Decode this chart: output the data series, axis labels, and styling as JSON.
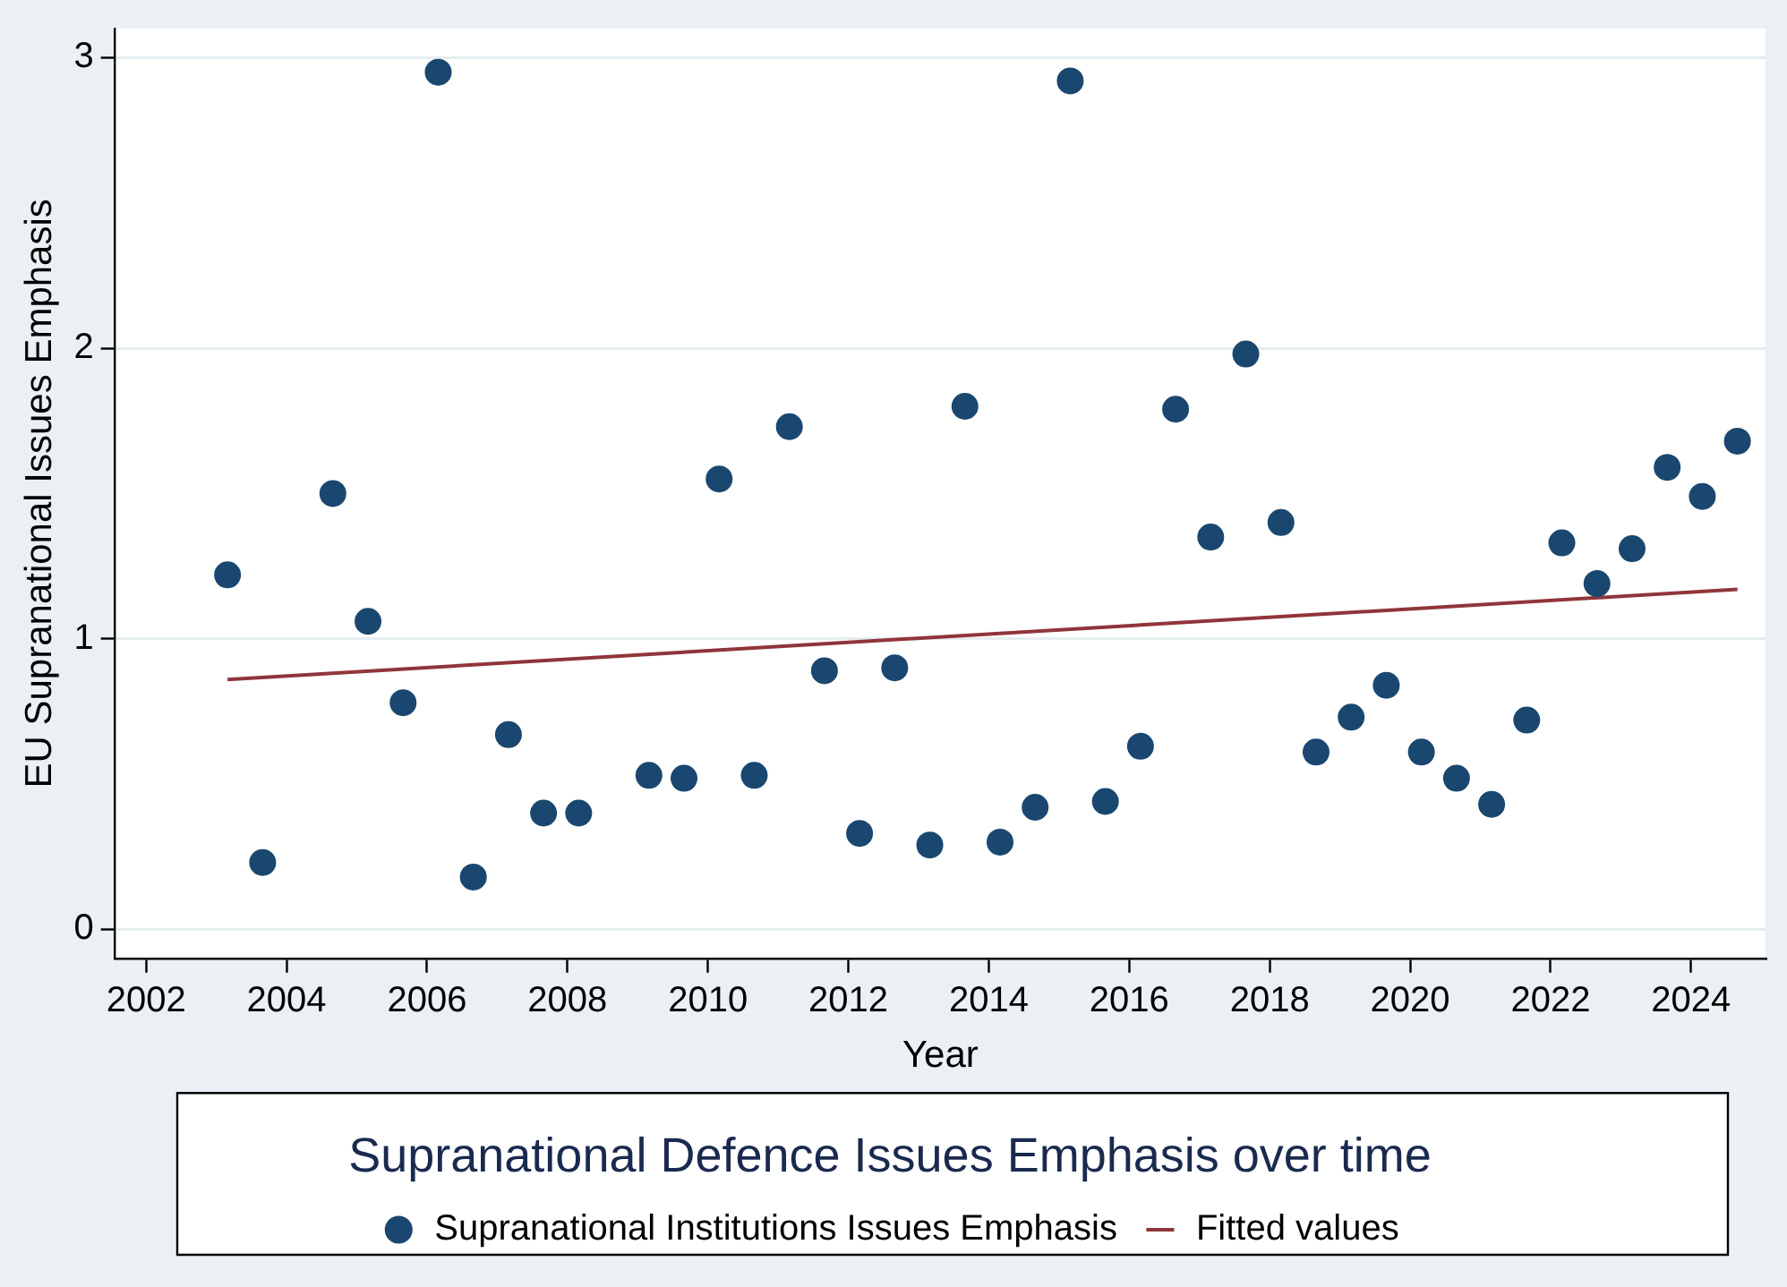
{
  "chart_data": {
    "type": "scatter",
    "title": "Supranational Defence Issues Emphasis over time",
    "xlabel": "Year",
    "ylabel": "EU Supranational Issues Emphasis",
    "xlim": [
      2001.56,
      2025.06
    ],
    "ylim": [
      -0.1,
      3.1
    ],
    "xticks": [
      2002,
      2004,
      2006,
      2008,
      2010,
      2012,
      2014,
      2016,
      2018,
      2020,
      2022,
      2024
    ],
    "yticks": [
      0,
      1,
      2,
      3
    ],
    "grid": "y",
    "legend": "bottom",
    "series": [
      {
        "name": "Supranational Institutions Issues Emphasis",
        "color": "#1a476f",
        "marker": "circle",
        "x": [
          2003.16,
          2003.66,
          2004.66,
          2005.16,
          2005.66,
          2006.16,
          2006.66,
          2007.16,
          2007.66,
          2008.16,
          2009.16,
          2009.66,
          2010.16,
          2010.66,
          2011.16,
          2011.66,
          2012.16,
          2012.66,
          2013.16,
          2013.66,
          2014.16,
          2014.66,
          2015.16,
          2015.66,
          2016.16,
          2016.66,
          2017.16,
          2017.66,
          2018.16,
          2018.66,
          2019.16,
          2019.66,
          2020.16,
          2020.66,
          2021.16,
          2021.66,
          2022.16,
          2022.66,
          2023.16,
          2023.66,
          2024.16,
          2024.66
        ],
        "values": [
          1.22,
          0.23,
          1.5,
          1.06,
          0.78,
          2.95,
          0.18,
          0.67,
          0.4,
          0.4,
          0.53,
          0.52,
          1.55,
          0.53,
          1.73,
          0.89,
          0.33,
          0.9,
          0.29,
          1.8,
          0.3,
          0.42,
          2.92,
          0.44,
          0.63,
          1.79,
          1.35,
          1.98,
          1.4,
          0.61,
          0.73,
          0.84,
          0.61,
          0.52,
          0.43,
          0.72,
          1.33,
          1.19,
          1.31,
          1.59,
          1.49,
          1.68
        ]
      },
      {
        "name": "Fitted values",
        "type": "line",
        "color": "#90353b",
        "marker": "none",
        "x": [
          2003.16,
          2024.66
        ],
        "values": [
          0.86,
          1.17
        ]
      }
    ]
  }
}
